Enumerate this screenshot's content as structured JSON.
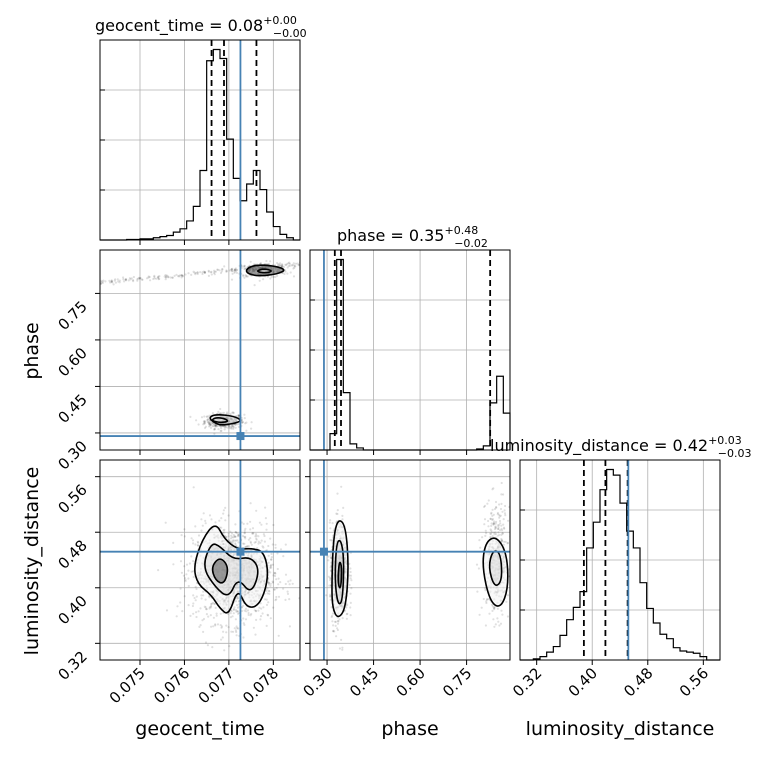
{
  "chart_data": {
    "type": "corner",
    "parameters": [
      {
        "name": "geocent_time",
        "xlabel": "geocent_time",
        "title_label": "geocent_time = 0.08",
        "median": "0.08",
        "plus": "+0.00",
        "minus": "−0.00",
        "range": [
          0.0741,
          0.0786
        ],
        "ticks": [
          0.075,
          0.076,
          0.077,
          0.078
        ],
        "tick_labels": [
          "0.075",
          "0.076",
          "0.077",
          "0.078"
        ],
        "quantiles": [
          0.07661,
          0.07689,
          0.07762
        ],
        "truth": 0.07726,
        "hist_bins": [
          0.0741,
          0.07425,
          0.0744,
          0.07455,
          0.0747,
          0.07485,
          0.075,
          0.07515,
          0.0753,
          0.07545,
          0.0756,
          0.07575,
          0.0759,
          0.07605,
          0.0762,
          0.07635,
          0.0765,
          0.07665,
          0.0768,
          0.07695,
          0.0771,
          0.07725,
          0.0774,
          0.07755,
          0.0777,
          0.07785,
          0.078,
          0.07815,
          0.0783,
          0.07845,
          0.0786
        ],
        "hist_values": [
          0,
          0,
          0,
          0,
          0.5,
          0.5,
          1,
          1,
          2,
          3,
          4,
          7,
          10,
          17,
          30,
          62,
          160,
          170,
          162,
          90,
          55,
          35,
          50,
          62,
          45,
          25,
          12,
          5,
          2,
          0
        ]
      },
      {
        "name": "phase",
        "xlabel": "phase",
        "ylabel": "phase",
        "title_label": "phase = 0.35",
        "median": "0.35",
        "plus": "+0.48",
        "minus": "−0.02",
        "range": [
          0.245,
          0.89
        ],
        "ticks": [
          0.3,
          0.45,
          0.6,
          0.75
        ],
        "tick_labels": [
          "0.30",
          "0.45",
          "0.60",
          "0.75"
        ],
        "quantiles": [
          0.325,
          0.345,
          0.826
        ],
        "truth": 0.29,
        "hist_bins": [
          0.245,
          0.2665,
          0.288,
          0.3095,
          0.331,
          0.3525,
          0.374,
          0.3955,
          0.417,
          0.4385,
          0.46,
          0.4815,
          0.503,
          0.5245,
          0.546,
          0.5675,
          0.589,
          0.6105,
          0.632,
          0.6535,
          0.675,
          0.6965,
          0.718,
          0.7395,
          0.761,
          0.7825,
          0.804,
          0.8255,
          0.847,
          0.8685,
          0.89
        ],
        "hist_values": [
          0,
          0,
          0,
          8,
          93,
          28,
          3,
          1,
          0,
          0,
          0,
          0,
          0,
          0,
          0,
          0,
          0,
          0,
          0,
          0,
          0,
          0,
          0,
          0,
          0,
          0.5,
          2,
          23,
          36,
          18
        ]
      },
      {
        "name": "luminosity_distance",
        "xlabel": "luminosity_distance",
        "ylabel": "luminosity_distance",
        "title_label": "luminosity_distance = 0.42",
        "median": "0.42",
        "plus": "+0.03",
        "minus": "−0.03",
        "range": [
          0.296,
          0.584
        ],
        "ticks": [
          0.32,
          0.4,
          0.48,
          0.56
        ],
        "tick_labels": [
          "0.32",
          "0.40",
          "0.48",
          "0.56"
        ],
        "quantiles": [
          0.388,
          0.419,
          0.451
        ],
        "truth": 0.452,
        "hist_bins": [
          0.296,
          0.3056,
          0.3152,
          0.3248,
          0.3344,
          0.344,
          0.3536,
          0.3632,
          0.3728,
          0.3824,
          0.392,
          0.4016,
          0.4112,
          0.4208,
          0.4304,
          0.44,
          0.4496,
          0.4592,
          0.4688,
          0.4784,
          0.488,
          0.4976,
          0.5072,
          0.5168,
          0.5264,
          0.536,
          0.5456,
          0.5552,
          0.5648,
          0.5744,
          0.584
        ],
        "hist_values": [
          0,
          0,
          1,
          3,
          7,
          12,
          22,
          36,
          47,
          61,
          100,
          123,
          152,
          170,
          165,
          140,
          115,
          100,
          69,
          46,
          33,
          23,
          19,
          11,
          8,
          7,
          6,
          3,
          0,
          0
        ]
      }
    ],
    "contours": [
      {
        "x_param": "geocent_time",
        "y_param": "phase",
        "levels": [
          {
            "points": [
              [
                0.07665,
                0.335
              ],
              [
                0.0768,
                0.325
              ],
              [
                0.0771,
                0.33
              ],
              [
                0.0773,
                0.34
              ],
              [
                0.0771,
                0.355
              ],
              [
                0.0767,
                0.36
              ],
              [
                0.07655,
                0.35
              ]
            ]
          },
          {
            "points": [
              [
                0.0766,
                0.34
              ],
              [
                0.0768,
                0.333
              ],
              [
                0.077,
                0.337
              ],
              [
                0.0769,
                0.347
              ],
              [
                0.0767,
                0.35
              ]
            ]
          },
          {
            "points": [
              [
                0.07735,
                0.82
              ],
              [
                0.0776,
                0.805
              ],
              [
                0.0781,
                0.812
              ],
              [
                0.0783,
                0.828
              ],
              [
                0.0779,
                0.842
              ],
              [
                0.0775,
                0.84
              ]
            ]
          },
          {
            "points": [
              [
                0.0776,
                0.822
              ],
              [
                0.0778,
                0.815
              ],
              [
                0.078,
                0.822
              ],
              [
                0.0778,
                0.83
              ]
            ]
          }
        ]
      },
      {
        "x_param": "geocent_time",
        "y_param": "luminosity_distance",
        "levels": [
          {
            "points": [
              [
                0.0762,
                0.43
              ],
              [
                0.0764,
                0.47
              ],
              [
                0.0767,
                0.495
              ],
              [
                0.0769,
                0.47
              ],
              [
                0.0772,
                0.455
              ],
              [
                0.0775,
                0.457
              ],
              [
                0.0778,
                0.452
              ],
              [
                0.0779,
                0.415
              ],
              [
                0.0777,
                0.375
              ],
              [
                0.0774,
                0.37
              ],
              [
                0.0772,
                0.4
              ],
              [
                0.077,
                0.36
              ],
              [
                0.0768,
                0.37
              ],
              [
                0.0766,
                0.39
              ],
              [
                0.0763,
                0.405
              ]
            ]
          },
          {
            "points": [
              [
                0.0764,
                0.43
              ],
              [
                0.0766,
                0.465
              ],
              [
                0.0768,
                0.46
              ],
              [
                0.0771,
                0.44
              ],
              [
                0.0775,
                0.445
              ],
              [
                0.0777,
                0.425
              ],
              [
                0.0775,
                0.39
              ],
              [
                0.0772,
                0.415
              ],
              [
                0.077,
                0.385
              ],
              [
                0.0767,
                0.4
              ]
            ]
          },
          {
            "points": [
              [
                0.0766,
                0.43
              ],
              [
                0.0768,
                0.445
              ],
              [
                0.077,
                0.43
              ],
              [
                0.0769,
                0.405
              ],
              [
                0.0767,
                0.41
              ]
            ]
          }
        ]
      },
      {
        "x_param": "phase",
        "y_param": "luminosity_distance",
        "levels": [
          {
            "points": [
              [
                0.315,
                0.4
              ],
              [
                0.32,
                0.47
              ],
              [
                0.335,
                0.5
              ],
              [
                0.36,
                0.49
              ],
              [
                0.37,
                0.43
              ],
              [
                0.36,
                0.37
              ],
              [
                0.335,
                0.355
              ],
              [
                0.318,
                0.37
              ]
            ]
          },
          {
            "points": [
              [
                0.325,
                0.41
              ],
              [
                0.33,
                0.465
              ],
              [
                0.345,
                0.47
              ],
              [
                0.355,
                0.44
              ],
              [
                0.35,
                0.38
              ],
              [
                0.335,
                0.375
              ]
            ]
          },
          {
            "points": [
              [
                0.335,
                0.415
              ],
              [
                0.34,
                0.44
              ],
              [
                0.348,
                0.43
              ],
              [
                0.345,
                0.4
              ],
              [
                0.338,
                0.4
              ]
            ]
          },
          {
            "points": [
              [
                0.8,
                0.43
              ],
              [
                0.81,
                0.465
              ],
              [
                0.845,
                0.475
              ],
              [
                0.88,
                0.45
              ],
              [
                0.885,
                0.4
              ],
              [
                0.86,
                0.37
              ],
              [
                0.825,
                0.38
              ]
            ]
          },
          {
            "points": [
              [
                0.82,
                0.43
              ],
              [
                0.835,
                0.455
              ],
              [
                0.86,
                0.45
              ],
              [
                0.865,
                0.41
              ],
              [
                0.84,
                0.4
              ]
            ]
          }
        ]
      }
    ],
    "truth_color": "#4682b4",
    "grid": true
  }
}
